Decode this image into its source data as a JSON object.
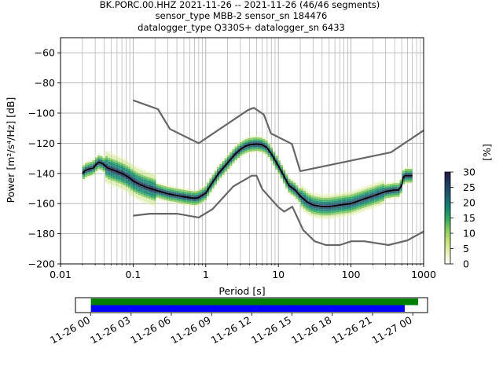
{
  "chart_data": [
    {
      "type": "heatmap",
      "kind": "probabilistic-power-spectral-density",
      "title_lines": [
        "BK.PORC.00.HHZ   2021-11-26 -- 2021-11-26  (46/46 segments)",
        "sensor_type MBB-2 sensor_sn 184476",
        "datalogger_type Q330S+ datalogger_sn 6433"
      ],
      "xlabel": "Period [s]",
      "ylabel": "Power [m²/s⁴/Hz] [dB]",
      "xscale": "log",
      "xlim": [
        0.01,
        1000
      ],
      "ylim": [
        -200,
        -50
      ],
      "x_ticks": [
        "0.01",
        "0.1",
        "1",
        "10",
        "100",
        "1000"
      ],
      "y_ticks": [
        "−60",
        "−80",
        "−100",
        "−120",
        "−140",
        "−160",
        "−180",
        "−200"
      ],
      "grid": true,
      "colorbar": {
        "label": "[%]",
        "range": [
          0,
          30
        ],
        "ticks": [
          "0",
          "5",
          "10",
          "15",
          "20",
          "25",
          "30"
        ],
        "colors": [
          "#ffffff",
          "#e9f1b6",
          "#c3e178",
          "#86c95e",
          "#2ea75f",
          "#138270",
          "#1f5b6f",
          "#213a63",
          "#2a1744"
        ]
      },
      "series": [
        {
          "role": "noise-model-high",
          "color": "#666666",
          "x": [
            0.1,
            0.22,
            0.32,
            0.8,
            3.8,
            4.6,
            6.3,
            7.9,
            15.4,
            20,
            354.8,
            1000
          ],
          "y": [
            -91.5,
            -97.4,
            -110.5,
            -120,
            -98,
            -96.5,
            -101,
            -113.5,
            -120.5,
            -138.5,
            -126,
            -111.5
          ]
        },
        {
          "role": "noise-model-low",
          "color": "#666666",
          "x": [
            0.1,
            0.17,
            0.4,
            0.8,
            1.24,
            2.4,
            4.3,
            5.0,
            6.0,
            10.0,
            12.0,
            15.6,
            21.9,
            31.6,
            45.0,
            70.0,
            101.0,
            154.0,
            328.0,
            600.0,
            1000.0
          ],
          "y": [
            -168,
            -166.7,
            -166.7,
            -169.2,
            -163.7,
            -148.6,
            -141.5,
            -141.5,
            -150.4,
            -162.4,
            -165.3,
            -162.1,
            -177.5,
            -185,
            -187.5,
            -187.5,
            -185,
            -185,
            -187.5,
            -184.4,
            -178.5
          ]
        },
        {
          "role": "mean-psd",
          "color": "#000000",
          "x": [
            0.02,
            0.022,
            0.025,
            0.028,
            0.031,
            0.034,
            0.038,
            0.045,
            0.055,
            0.07,
            0.09,
            0.1,
            0.12,
            0.15,
            0.2,
            0.3,
            0.5,
            0.7,
            0.8,
            1.0,
            1.2,
            1.5,
            2.0,
            2.5,
            3.0,
            3.5,
            4.0,
            5.0,
            6.0,
            7.0,
            8.0,
            10.0,
            12.0,
            14.0,
            17.0,
            20.0,
            25.0,
            30.0,
            40.0,
            50.0,
            70.0,
            100.0,
            150.0,
            200.0,
            300.0,
            400.0,
            450.0,
            500.0,
            520.0,
            550.0,
            600.0,
            700.0
          ],
          "y": [
            -140,
            -138,
            -137,
            -136.5,
            -134,
            -132.5,
            -133.5,
            -136.5,
            -138,
            -140,
            -143,
            -145,
            -147,
            -149,
            -151,
            -153.5,
            -155.5,
            -156.5,
            -156,
            -153,
            -147,
            -140,
            -133,
            -127.5,
            -124,
            -122,
            -121,
            -120.5,
            -121,
            -123,
            -127,
            -135,
            -142,
            -148,
            -151,
            -155,
            -159,
            -161,
            -162,
            -162,
            -161,
            -160,
            -157,
            -155,
            -152,
            -151,
            -151,
            -148,
            -143,
            -141.5,
            -141.5,
            -141.5
          ]
        }
      ]
    },
    {
      "type": "timeline",
      "x_ticks": [
        "11-26 00",
        "11-26 03",
        "11-26 06",
        "11-26 09",
        "11-26 12",
        "11-26 15",
        "11-26 18",
        "11-26 21",
        "11-27 00"
      ],
      "xlim_hours": [
        -1.15,
        25.1
      ],
      "series": [
        {
          "color": "#008000",
          "start_hour": 0,
          "end_hour": 24.4
        },
        {
          "color": "#0000ff",
          "start_hour": 0,
          "end_hour": 23.4
        }
      ]
    }
  ]
}
